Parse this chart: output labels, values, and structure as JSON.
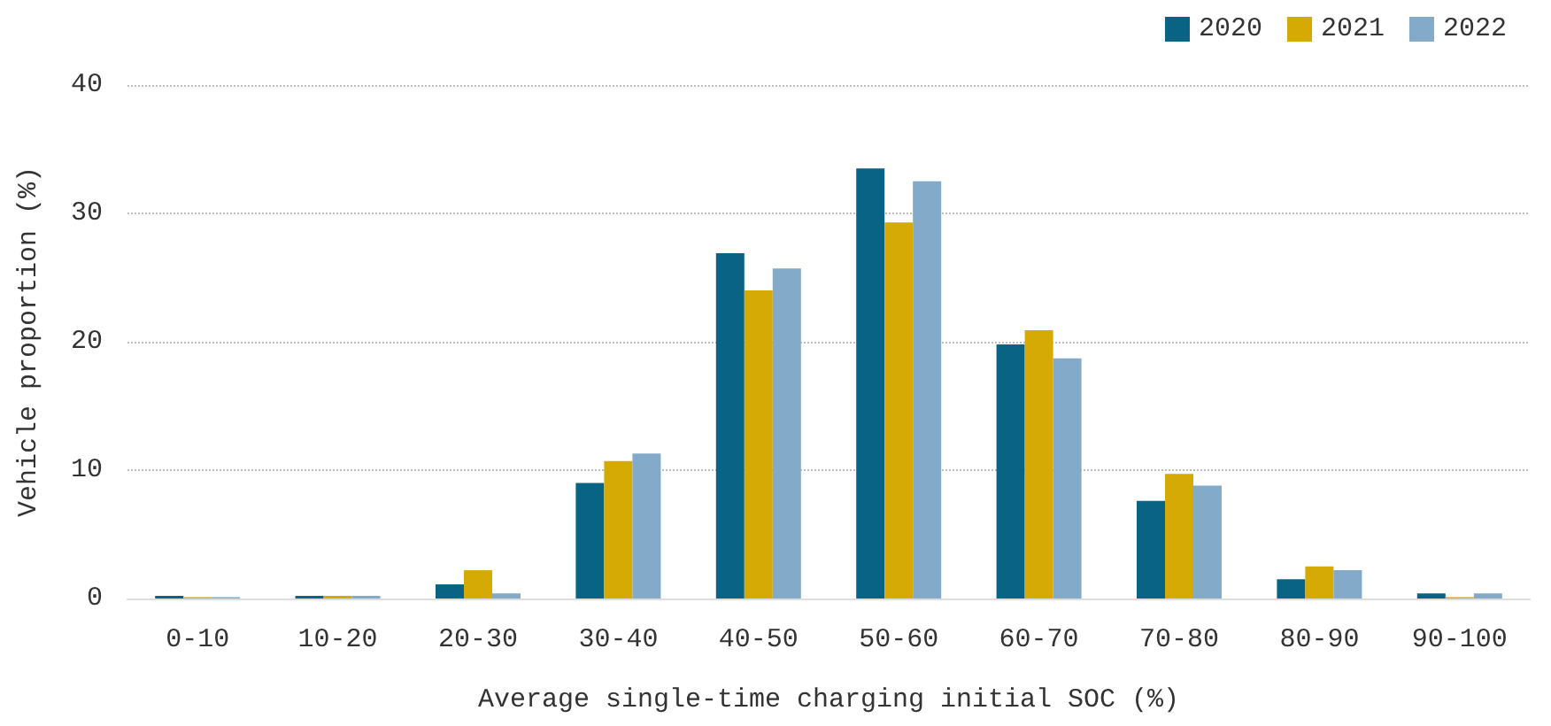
{
  "chart_data": {
    "type": "bar",
    "xlabel": "Average single-time charging initial SOC (%)",
    "ylabel": "Vehicle proportion (%)",
    "categories": [
      "0-10",
      "10-20",
      "20-30",
      "30-40",
      "40-50",
      "50-60",
      "60-70",
      "70-80",
      "80-90",
      "90-100"
    ],
    "series": [
      {
        "name": "2020",
        "color": "#086384",
        "values": [
          0.2,
          0.2,
          1.1,
          9.0,
          26.9,
          33.5,
          19.8,
          7.6,
          1.5,
          0.4
        ]
      },
      {
        "name": "2021",
        "color": "#d5aa04",
        "values": [
          0.1,
          0.2,
          2.2,
          10.7,
          24.0,
          29.3,
          20.9,
          9.7,
          2.5,
          0.1
        ]
      },
      {
        "name": "2022",
        "color": "#84aac9",
        "values": [
          0.1,
          0.2,
          0.4,
          11.3,
          25.7,
          32.5,
          18.7,
          8.8,
          2.2,
          0.4
        ]
      }
    ],
    "ylim": [
      0,
      40
    ],
    "yticks": [
      0,
      10,
      20,
      30,
      40
    ],
    "grid": "y",
    "legend": "top right"
  }
}
